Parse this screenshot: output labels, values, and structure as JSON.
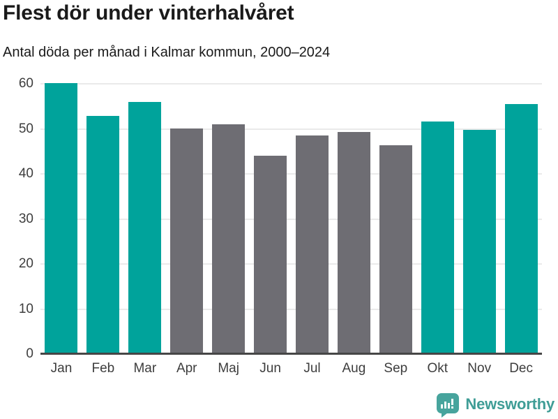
{
  "header": {
    "title": "Flest dör under vinterhalvåret",
    "subtitle": "Antal döda per månad i Kalmar kommun, 2000–2024"
  },
  "chart_data": {
    "type": "bar",
    "title": "Flest dör under vinterhalvåret",
    "subtitle": "Antal döda per månad i Kalmar kommun, 2000–2024",
    "categories": [
      "Jan",
      "Feb",
      "Mar",
      "Apr",
      "Maj",
      "Jun",
      "Jul",
      "Aug",
      "Sep",
      "Okt",
      "Nov",
      "Dec"
    ],
    "values": [
      60.1,
      52.9,
      55.9,
      50.1,
      51.0,
      44.1,
      48.5,
      49.3,
      46.3,
      51.6,
      49.8,
      55.5
    ],
    "groups": [
      "winter",
      "winter",
      "winter",
      "summer",
      "summer",
      "summer",
      "summer",
      "summer",
      "summer",
      "winter",
      "winter",
      "winter"
    ],
    "xlabel": "",
    "ylabel": "",
    "ylim": [
      0,
      60
    ],
    "yticks": [
      0,
      10,
      20,
      30,
      40,
      50,
      60
    ],
    "grid": true,
    "legend": false,
    "bar_colors": {
      "winter": "#00a39b",
      "summer": "#6e6d73"
    }
  },
  "colors": {
    "winter_bar_teal": "#00a39b",
    "summer_bar_gray": "#6e6d73",
    "gridline": "#eaeaea",
    "axis_line": "#464646",
    "tick_text": "#3d3d3d",
    "title_text": "#1a1a1a",
    "brand_teal_text": "#3f9d96",
    "brand_icon_bg": "#47a49d"
  },
  "footer": {
    "brand": "Newsworthy",
    "brand_icon": "newsworthy-chart-bubble-icon"
  }
}
